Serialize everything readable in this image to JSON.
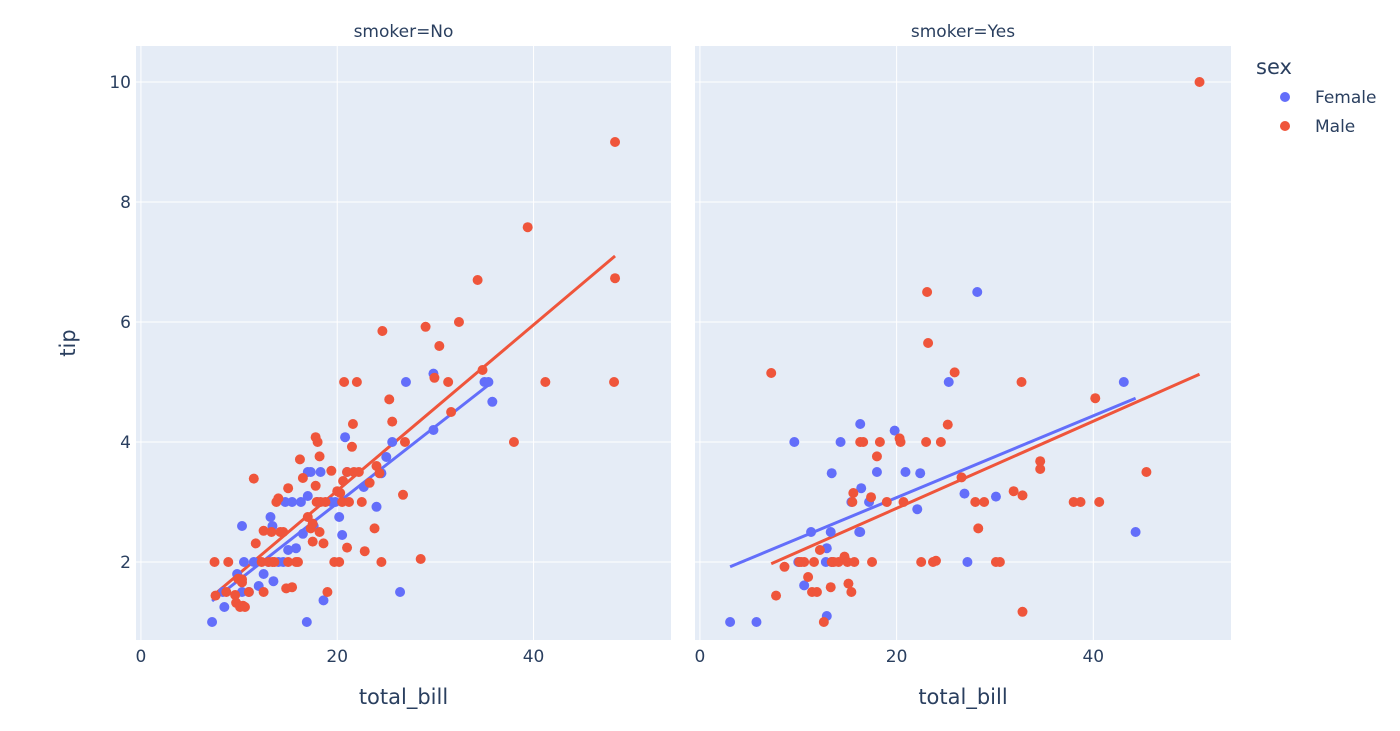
{
  "chart_data": {
    "type": "scatter",
    "x_label": "total_bill",
    "y_label": "tip",
    "legend": {
      "title": "sex",
      "position": "top-right",
      "entries": [
        {
          "name": "Female",
          "color": "#636efa"
        },
        {
          "name": "Male",
          "color": "#ef553b"
        }
      ]
    },
    "x_range": [
      -0.5,
      54
    ],
    "y_range": [
      0.7,
      10.6
    ],
    "x_ticks": [
      "0",
      "20",
      "40"
    ],
    "y_ticks": [
      "2",
      "4",
      "6",
      "8",
      "10"
    ],
    "grid": true,
    "panels": [
      {
        "title": "smoker=No",
        "series": [
          {
            "name": "Female",
            "color": "#636efa",
            "points": [
              [
                7.25,
                1.0
              ],
              [
                8.5,
                1.25
              ],
              [
                8.35,
                1.5
              ],
              [
                9.8,
                1.8
              ],
              [
                10.3,
                1.5
              ],
              [
                10.3,
                2.6
              ],
              [
                10.5,
                2.0
              ],
              [
                11.0,
                1.5
              ],
              [
                11.5,
                2.0
              ],
              [
                12.0,
                1.6
              ],
              [
                12.5,
                1.8
              ],
              [
                13.0,
                2.0
              ],
              [
                13.2,
                2.75
              ],
              [
                13.4,
                2.6
              ],
              [
                13.5,
                1.68
              ],
              [
                14.0,
                2.0
              ],
              [
                14.5,
                2.0
              ],
              [
                14.7,
                3.0
              ],
              [
                15.0,
                2.2
              ],
              [
                15.4,
                3.0
              ],
              [
                15.8,
                2.23
              ],
              [
                16.3,
                3.0
              ],
              [
                16.5,
                2.47
              ],
              [
                16.9,
                1.0
              ],
              [
                17.0,
                3.1
              ],
              [
                17.0,
                3.5
              ],
              [
                17.3,
                3.5
              ],
              [
                17.6,
                2.6
              ],
              [
                18.0,
                3.0
              ],
              [
                18.3,
                3.5
              ],
              [
                18.6,
                1.36
              ],
              [
                19.4,
                3.0
              ],
              [
                19.8,
                3.0
              ],
              [
                20.2,
                2.75
              ],
              [
                20.5,
                2.45
              ],
              [
                20.8,
                4.08
              ],
              [
                21.0,
                3.5
              ],
              [
                22.7,
                3.25
              ],
              [
                24.0,
                2.92
              ],
              [
                24.5,
                3.48
              ],
              [
                25.0,
                3.75
              ],
              [
                25.6,
                4.0
              ],
              [
                26.4,
                1.5
              ],
              [
                27.0,
                5.0
              ],
              [
                29.8,
                4.2
              ],
              [
                29.8,
                5.14
              ],
              [
                35.0,
                5.0
              ],
              [
                35.4,
                5.0
              ],
              [
                35.8,
                4.67
              ]
            ]
          },
          {
            "name": "Male",
            "color": "#ef553b",
            "points": [
              [
                7.5,
                2.0
              ],
              [
                7.6,
                1.44
              ],
              [
                8.7,
                1.5
              ],
              [
                8.9,
                2.0
              ],
              [
                9.6,
                1.45
              ],
              [
                9.7,
                1.32
              ],
              [
                9.9,
                1.72
              ],
              [
                10.1,
                1.25
              ],
              [
                10.3,
                1.71
              ],
              [
                10.4,
                1.27
              ],
              [
                10.3,
                1.66
              ],
              [
                10.6,
                1.25
              ],
              [
                11.0,
                1.5
              ],
              [
                11.5,
                3.39
              ],
              [
                11.7,
                2.31
              ],
              [
                12.3,
                2.0
              ],
              [
                12.5,
                1.5
              ],
              [
                12.5,
                2.52
              ],
              [
                13.0,
                2.0
              ],
              [
                13.3,
                2.5
              ],
              [
                13.4,
                2.0
              ],
              [
                13.6,
                2.0
              ],
              [
                13.8,
                3.0
              ],
              [
                14.0,
                3.06
              ],
              [
                14.2,
                2.5
              ],
              [
                14.5,
                2.5
              ],
              [
                14.8,
                1.56
              ],
              [
                15.0,
                2.0
              ],
              [
                15.0,
                3.23
              ],
              [
                15.4,
                1.58
              ],
              [
                15.8,
                2.0
              ],
              [
                16.0,
                2.0
              ],
              [
                16.2,
                3.71
              ],
              [
                16.5,
                3.4
              ],
              [
                17.0,
                2.75
              ],
              [
                17.3,
                2.56
              ],
              [
                17.5,
                2.64
              ],
              [
                17.5,
                2.34
              ],
              [
                17.8,
                4.08
              ],
              [
                17.8,
                3.27
              ],
              [
                17.9,
                3.0
              ],
              [
                18.0,
                4.0
              ],
              [
                18.2,
                3.76
              ],
              [
                18.2,
                2.5
              ],
              [
                18.3,
                3.0
              ],
              [
                18.6,
                2.31
              ],
              [
                18.8,
                3.0
              ],
              [
                19.0,
                1.5
              ],
              [
                19.4,
                3.52
              ],
              [
                19.7,
                2.0
              ],
              [
                20.0,
                3.18
              ],
              [
                20.2,
                2.0
              ],
              [
                20.3,
                3.15
              ],
              [
                20.5,
                3.0
              ],
              [
                20.6,
                3.35
              ],
              [
                20.7,
                5.0
              ],
              [
                21.0,
                3.5
              ],
              [
                21.0,
                2.24
              ],
              [
                21.2,
                3.0
              ],
              [
                21.5,
                3.92
              ],
              [
                21.6,
                4.3
              ],
              [
                21.7,
                3.5
              ],
              [
                22.0,
                5.0
              ],
              [
                22.2,
                3.5
              ],
              [
                22.5,
                3.0
              ],
              [
                22.8,
                2.18
              ],
              [
                23.3,
                3.32
              ],
              [
                23.8,
                2.56
              ],
              [
                24.0,
                3.6
              ],
              [
                24.3,
                3.48
              ],
              [
                24.5,
                2.0
              ],
              [
                24.6,
                5.85
              ],
              [
                25.3,
                4.71
              ],
              [
                25.6,
                4.34
              ],
              [
                26.7,
                3.12
              ],
              [
                26.9,
                4.0
              ],
              [
                28.5,
                2.05
              ],
              [
                29.0,
                5.92
              ],
              [
                29.9,
                5.07
              ],
              [
                30.4,
                5.6
              ],
              [
                31.3,
                5.0
              ],
              [
                31.6,
                4.5
              ],
              [
                32.4,
                6.0
              ],
              [
                34.3,
                6.7
              ],
              [
                34.8,
                5.2
              ],
              [
                38.0,
                4.0
              ],
              [
                39.4,
                7.58
              ],
              [
                41.2,
                5.0
              ],
              [
                48.3,
                9.0
              ],
              [
                48.3,
                6.73
              ],
              [
                48.2,
                5.0
              ]
            ]
          }
        ],
        "fits": [
          {
            "name": "Female",
            "color": "#636efa",
            "x": [
              7.25,
              35.8
            ],
            "y": [
              1.35,
              5.0
            ]
          },
          {
            "name": "Male",
            "color": "#ef553b",
            "x": [
              7.5,
              48.3
            ],
            "y": [
              1.46,
              7.1
            ]
          }
        ]
      },
      {
        "title": "smoker=Yes",
        "series": [
          {
            "name": "Female",
            "color": "#636efa",
            "points": [
              [
                3.07,
                1.0
              ],
              [
                5.75,
                1.0
              ],
              [
                9.6,
                4.0
              ],
              [
                10.0,
                2.0
              ],
              [
                10.6,
                1.61
              ],
              [
                11.3,
                2.5
              ],
              [
                12.8,
                2.0
              ],
              [
                12.9,
                1.1
              ],
              [
                12.9,
                2.23
              ],
              [
                13.3,
                2.5
              ],
              [
                13.4,
                3.48
              ],
              [
                13.4,
                2.0
              ],
              [
                14.3,
                4.0
              ],
              [
                15.4,
                3.0
              ],
              [
                16.2,
                2.5
              ],
              [
                16.3,
                4.3
              ],
              [
                16.4,
                3.23
              ],
              [
                16.3,
                2.5
              ],
              [
                17.2,
                3.0
              ],
              [
                18.0,
                3.5
              ],
              [
                19.8,
                4.19
              ],
              [
                20.9,
                3.5
              ],
              [
                22.1,
                2.88
              ],
              [
                22.4,
                3.48
              ],
              [
                25.3,
                5.0
              ],
              [
                26.9,
                3.14
              ],
              [
                27.2,
                2.0
              ],
              [
                28.2,
                6.5
              ],
              [
                30.1,
                3.09
              ],
              [
                43.1,
                5.0
              ],
              [
                44.3,
                2.5
              ]
            ]
          },
          {
            "name": "Male",
            "color": "#ef553b",
            "points": [
              [
                7.25,
                5.15
              ],
              [
                7.74,
                1.44
              ],
              [
                8.6,
                1.92
              ],
              [
                10.1,
                2.0
              ],
              [
                10.3,
                2.0
              ],
              [
                10.6,
                2.0
              ],
              [
                11.0,
                1.75
              ],
              [
                11.4,
                1.5
              ],
              [
                11.6,
                2.0
              ],
              [
                11.9,
                1.5
              ],
              [
                12.2,
                2.2
              ],
              [
                12.6,
                1.0
              ],
              [
                13.3,
                1.58
              ],
              [
                13.4,
                2.0
              ],
              [
                13.6,
                2.0
              ],
              [
                14.1,
                2.0
              ],
              [
                14.7,
                2.09
              ],
              [
                15.0,
                2.0
              ],
              [
                15.1,
                1.64
              ],
              [
                15.4,
                1.5
              ],
              [
                15.5,
                3.0
              ],
              [
                15.6,
                3.15
              ],
              [
                15.7,
                2.0
              ],
              [
                16.3,
                4.0
              ],
              [
                16.6,
                4.0
              ],
              [
                17.4,
                3.08
              ],
              [
                17.5,
                2.0
              ],
              [
                18.0,
                3.76
              ],
              [
                18.3,
                4.0
              ],
              [
                19.0,
                3.0
              ],
              [
                20.3,
                4.06
              ],
              [
                20.4,
                4.0
              ],
              [
                20.7,
                3.0
              ],
              [
                22.5,
                2.0
              ],
              [
                23.0,
                4.0
              ],
              [
                23.1,
                6.5
              ],
              [
                23.2,
                5.65
              ],
              [
                23.7,
                2.0
              ],
              [
                24.0,
                2.02
              ],
              [
                24.5,
                4.0
              ],
              [
                25.2,
                4.29
              ],
              [
                25.9,
                5.16
              ],
              [
                26.6,
                3.41
              ],
              [
                28.0,
                3.0
              ],
              [
                28.3,
                2.56
              ],
              [
                28.9,
                3.0
              ],
              [
                30.1,
                2.0
              ],
              [
                30.5,
                2.0
              ],
              [
                31.9,
                3.18
              ],
              [
                32.7,
                5.0
              ],
              [
                32.8,
                1.17
              ],
              [
                32.8,
                3.11
              ],
              [
                34.6,
                3.68
              ],
              [
                34.6,
                3.55
              ],
              [
                38.0,
                3.0
              ],
              [
                38.7,
                3.0
              ],
              [
                40.2,
                4.73
              ],
              [
                40.6,
                3.0
              ],
              [
                45.4,
                3.5
              ],
              [
                50.8,
                10.0
              ]
            ]
          }
        ],
        "fits": [
          {
            "name": "Female",
            "color": "#636efa",
            "x": [
              3.07,
              44.3
            ],
            "y": [
              1.92,
              4.73
            ]
          },
          {
            "name": "Male",
            "color": "#ef553b",
            "x": [
              7.25,
              50.8
            ],
            "y": [
              1.97,
              5.13
            ]
          }
        ]
      }
    ]
  }
}
